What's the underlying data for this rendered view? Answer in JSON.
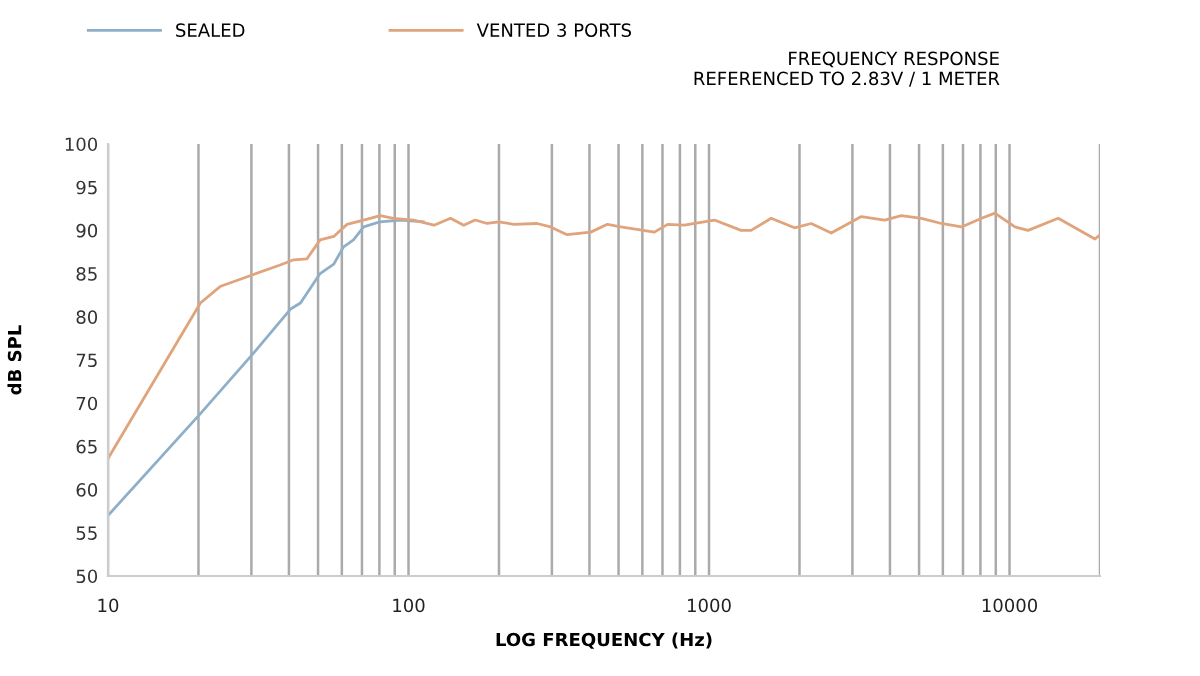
{
  "chart_data": {
    "type": "line",
    "title": "FREQUENCY RESPONSE",
    "subtitle": "REFERENCED TO 2.83V / 1 METER",
    "xlabel": "LOG FREQUENCY (Hz)",
    "ylabel": "dB SPL",
    "log": "x",
    "series": [
      {
        "name": "SEALED",
        "color": "#8fafc8",
        "x": [
          10,
          20.3,
          30.5,
          40.5,
          43.7,
          50.8,
          56.4,
          60.8,
          65.6,
          70.9,
          80.5,
          94,
          112
        ],
        "values": [
          57.0,
          68.8,
          75.8,
          80.9,
          81.6,
          85.0,
          86.1,
          88.1,
          88.9,
          90.4,
          91.0,
          91.2,
          91.0
        ]
      },
      {
        "name": "VENTED 3 PORTS",
        "color": "#e0a47c",
        "x": [
          10,
          20.3,
          23.6,
          30.5,
          37.4,
          41.5,
          45.9,
          50.8,
          56.4,
          62.4,
          70.9,
          80.5,
          89.1,
          104,
          121.6,
          138,
          152.6,
          166.6,
          182.6,
          200,
          224,
          268,
          297,
          337,
          404,
          459,
          509,
          658,
          728,
          828,
          1042,
          1279,
          1380,
          1610,
          1925,
          2188,
          2551,
          3212,
          3840,
          4365,
          5090,
          5930,
          6918,
          8072,
          8937,
          10420,
          11530,
          14520,
          19240,
          20000
        ],
        "values": [
          63.6,
          81.6,
          83.5,
          84.9,
          86.0,
          86.6,
          86.7,
          88.9,
          89.3,
          90.7,
          91.2,
          91.7,
          91.4,
          91.2,
          90.6,
          91.4,
          90.6,
          91.2,
          90.8,
          91.0,
          90.7,
          90.8,
          90.4,
          89.5,
          89.8,
          90.7,
          90.4,
          89.8,
          90.7,
          90.6,
          91.2,
          90.0,
          90.0,
          91.4,
          90.3,
          90.8,
          89.7,
          91.6,
          91.2,
          91.7,
          91.4,
          90.8,
          90.4,
          91.4,
          92.0,
          90.4,
          90.0,
          91.4,
          89.0,
          89.5
        ]
      }
    ],
    "xlim": [
      10,
      20000
    ],
    "ylim": [
      50,
      100
    ],
    "xticks": [
      10,
      {
        "value": 20,
        "label": null
      },
      {
        "value": 30,
        "label": null
      },
      {
        "value": 40,
        "label": null
      },
      {
        "value": 50,
        "label": null
      },
      {
        "value": 60,
        "label": null
      },
      {
        "value": 70,
        "label": null
      },
      {
        "value": 80,
        "label": null
      },
      {
        "value": 90,
        "label": null
      },
      100,
      {
        "value": 200,
        "label": null
      },
      {
        "value": 300,
        "label": null
      },
      {
        "value": 400,
        "label": null
      },
      {
        "value": 500,
        "label": null
      },
      {
        "value": 600,
        "label": null
      },
      {
        "value": 700,
        "label": null
      },
      {
        "value": 800,
        "label": null
      },
      {
        "value": 900,
        "label": null
      },
      1000,
      {
        "value": 2000,
        "label": null
      },
      {
        "value": 3000,
        "label": null
      },
      {
        "value": 4000,
        "label": null
      },
      {
        "value": 5000,
        "label": null
      },
      {
        "value": 6000,
        "label": null
      },
      {
        "value": 7000,
        "label": null
      },
      {
        "value": 8000,
        "label": null
      },
      {
        "value": 9000,
        "label": null
      },
      10000,
      {
        "value": 20000,
        "label": null
      }
    ],
    "yticks": [
      50,
      55,
      60,
      65,
      70,
      75,
      80,
      85,
      90,
      95,
      100
    ],
    "grid": "x",
    "legend": "top left"
  }
}
